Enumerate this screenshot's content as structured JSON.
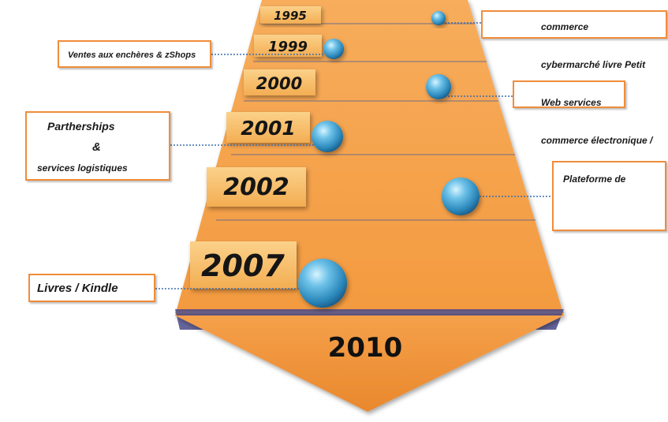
{
  "timeline": {
    "years": [
      "1995",
      "1999",
      "2000",
      "2001",
      "2002",
      "2007"
    ],
    "final_year": "2010"
  },
  "labels": {
    "commerce": "commerce",
    "encheres": "Ventes aux enchères & zShops",
    "cybermarche": "cybermarché livre Petit",
    "web_services": "Web services",
    "partnerships_line1": "Partherships",
    "partnerships_amp": "&",
    "partnerships_line3": "services logistiques",
    "commerce_electronique": "commerce électronique /",
    "plateforme": "Plateforme de",
    "livres": "Livres / Kindle"
  },
  "colors": {
    "arrow_orange": "#f5a04a",
    "callout_border": "#ef8d3a",
    "bubble_blue": "#2f8fc0",
    "connector": "#3a6fb0"
  },
  "icons": [
    "sphere-bubble"
  ]
}
